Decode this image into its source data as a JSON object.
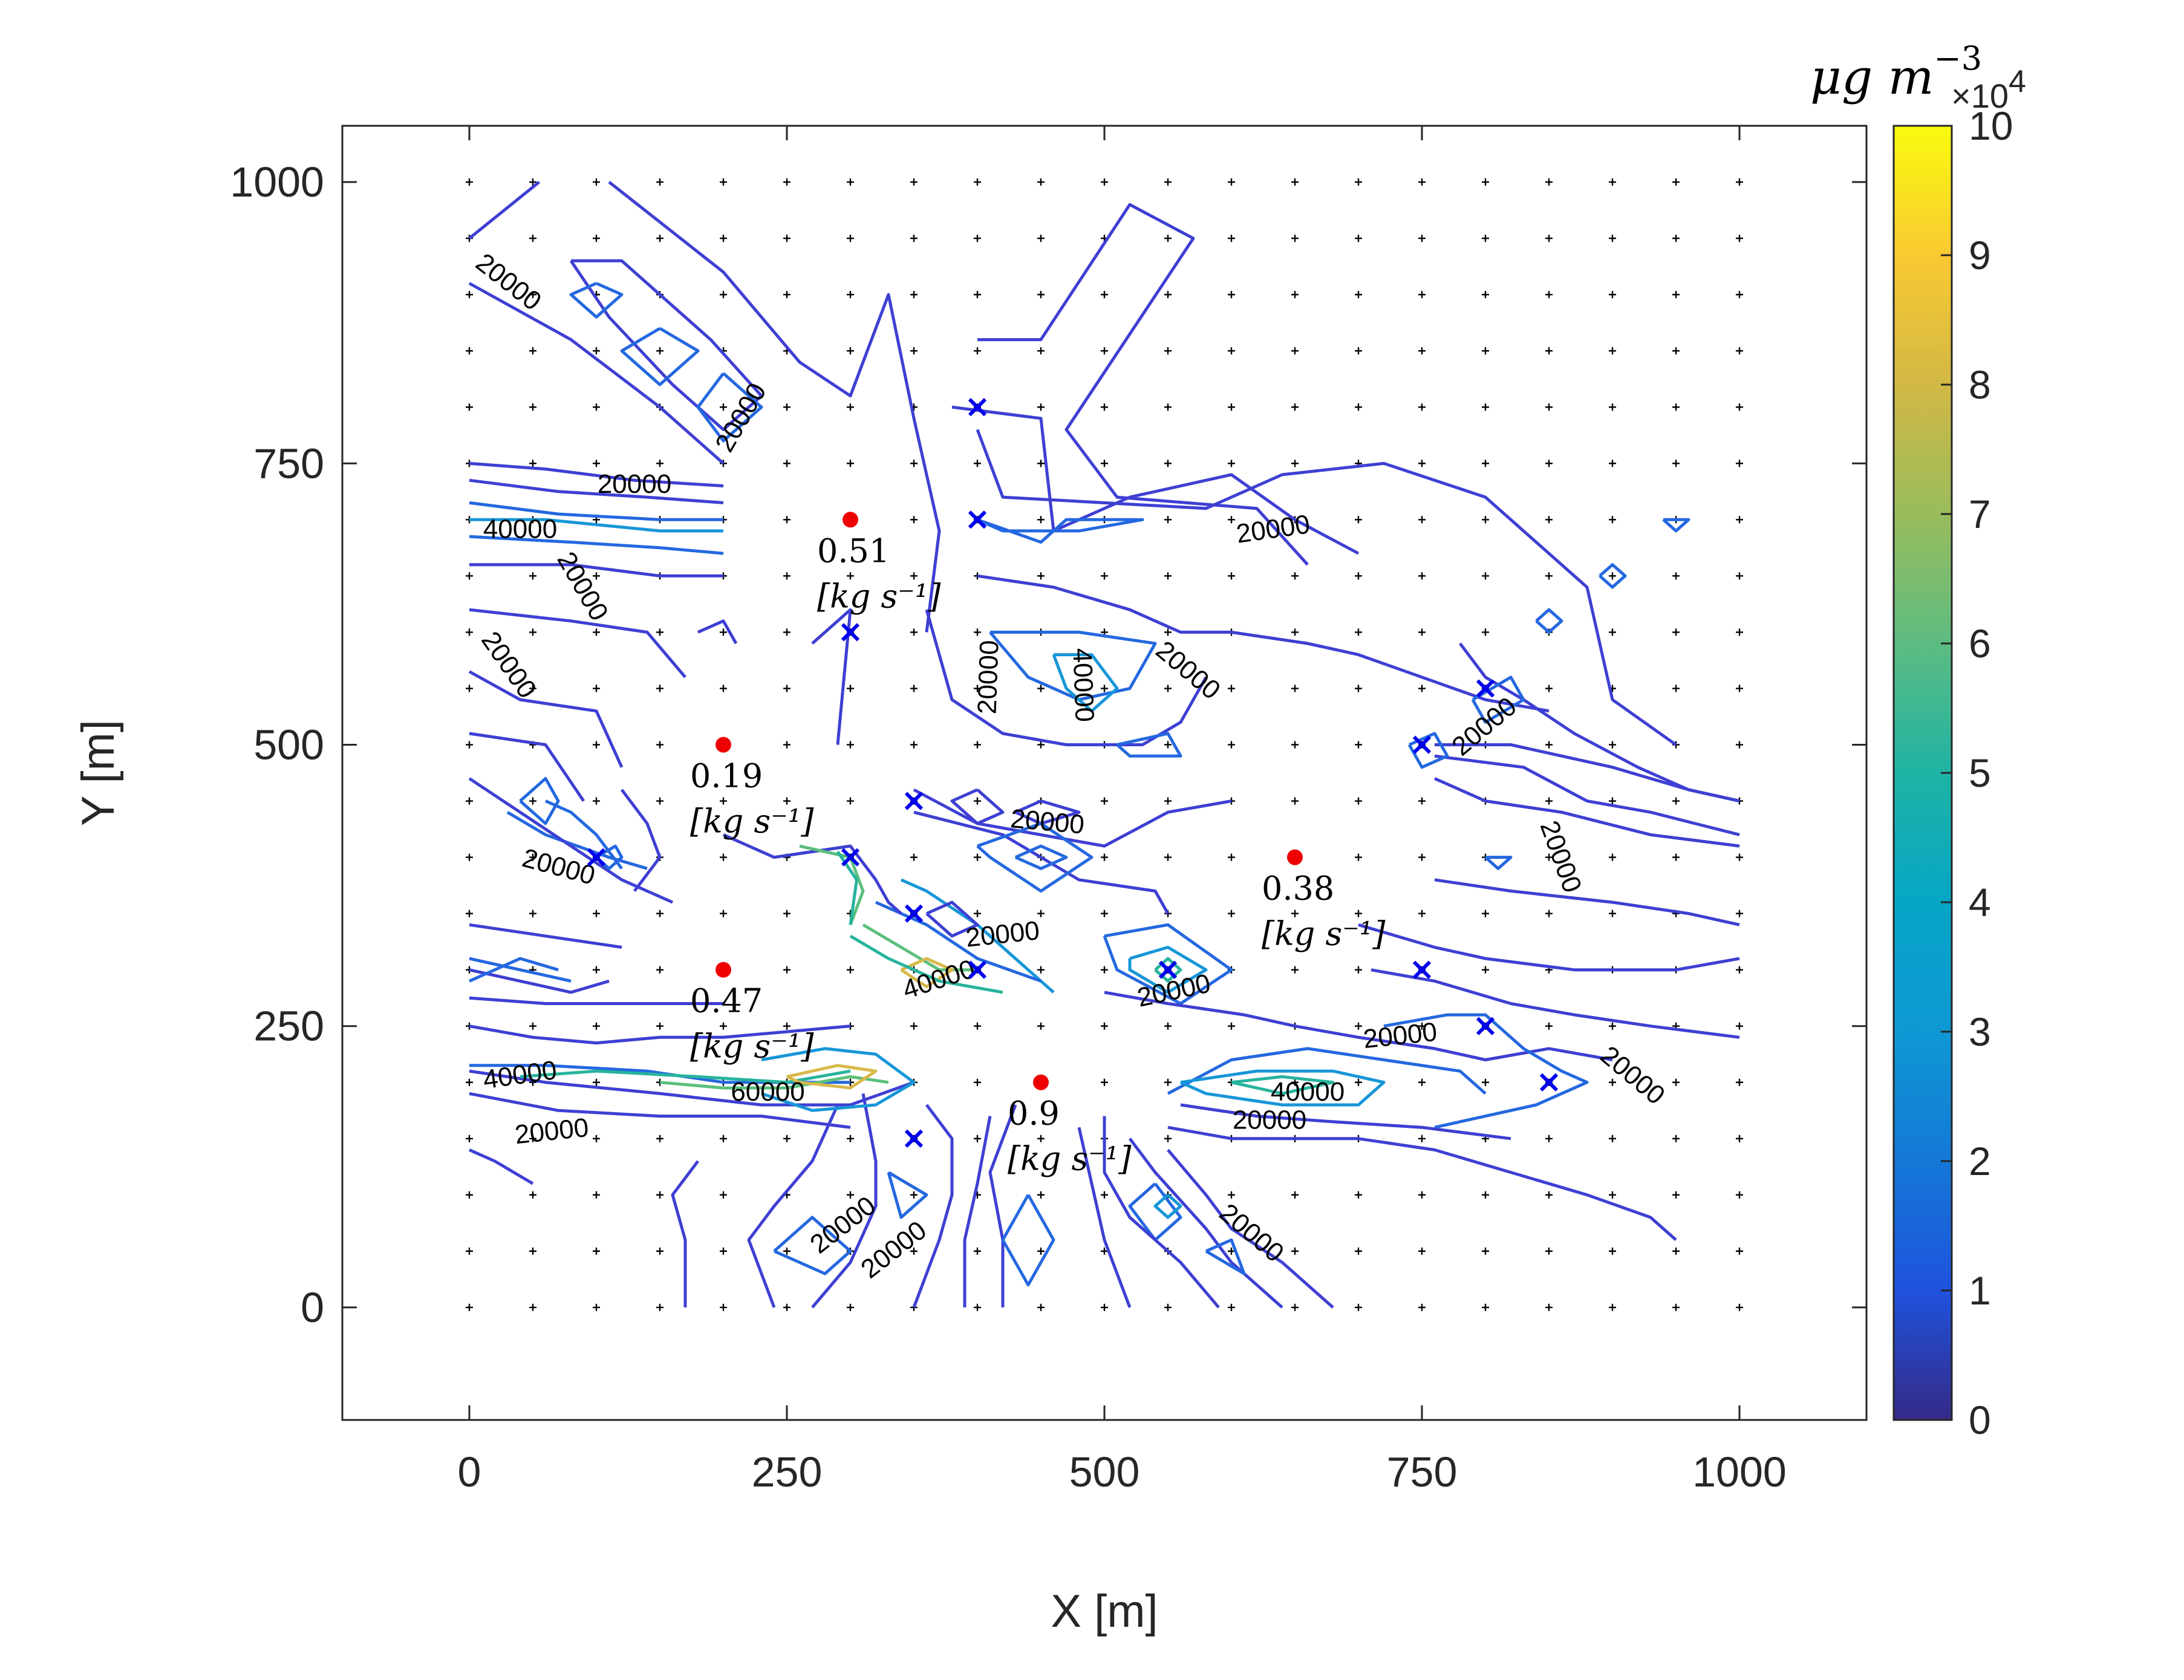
{
  "chart_data": {
    "type": "contour",
    "xlabel": "X [m]",
    "ylabel": "Y [m]",
    "xlim": [
      -100,
      1100
    ],
    "ylim": [
      -100,
      1050
    ],
    "xticks": [
      0,
      250,
      500,
      750,
      1000
    ],
    "yticks": [
      0,
      250,
      500,
      750,
      1000
    ],
    "xtick_labels": [
      "0",
      "250",
      "500",
      "750",
      "1000"
    ],
    "ytick_labels": [
      "0",
      "250",
      "500",
      "750",
      "1000"
    ],
    "grid_step": 50,
    "colorbar": {
      "unit": "μg m",
      "unit_exponent": "−3",
      "multiplier": "×10",
      "multiplier_exponent": "4",
      "range": [
        0,
        10
      ],
      "ticks": [
        0,
        1,
        2,
        3,
        4,
        5,
        6,
        7,
        8,
        9,
        10
      ],
      "tick_labels": [
        "0",
        "1",
        "2",
        "3",
        "4",
        "5",
        "6",
        "7",
        "8",
        "9",
        "10"
      ]
    },
    "sources": [
      {
        "x": 300,
        "y": 700,
        "rate": "0.51",
        "unit": "[kg s⁻¹]"
      },
      {
        "x": 200,
        "y": 500,
        "rate": "0.19",
        "unit": "[kg s⁻¹]"
      },
      {
        "x": 200,
        "y": 300,
        "rate": "0.47",
        "unit": "[kg s⁻¹]"
      },
      {
        "x": 450,
        "y": 200,
        "rate": "0.9",
        "unit": "[kg s⁻¹]"
      },
      {
        "x": 650,
        "y": 400,
        "rate": "0.38",
        "unit": "[kg s⁻¹]"
      }
    ],
    "sensors": [
      {
        "x": 400,
        "y": 800
      },
      {
        "x": 400,
        "y": 700
      },
      {
        "x": 300,
        "y": 600
      },
      {
        "x": 350,
        "y": 450
      },
      {
        "x": 300,
        "y": 400
      },
      {
        "x": 350,
        "y": 350
      },
      {
        "x": 400,
        "y": 300
      },
      {
        "x": 350,
        "y": 150
      },
      {
        "x": 100,
        "y": 400
      },
      {
        "x": 550,
        "y": 300
      },
      {
        "x": 750,
        "y": 500
      },
      {
        "x": 800,
        "y": 550
      },
      {
        "x": 750,
        "y": 300
      },
      {
        "x": 800,
        "y": 250
      },
      {
        "x": 850,
        "y": 200
      }
    ],
    "contour_labels": [
      {
        "text": "20000",
        "x": 30,
        "y": 910,
        "angle": 38
      },
      {
        "text": "20000",
        "x": 215,
        "y": 790,
        "angle": -60
      },
      {
        "text": "20000",
        "x": 130,
        "y": 730,
        "angle": 0
      },
      {
        "text": "40000",
        "x": 40,
        "y": 690,
        "angle": 0
      },
      {
        "text": "20000",
        "x": 88,
        "y": 640,
        "angle": 60
      },
      {
        "text": "20000",
        "x": 30,
        "y": 570,
        "angle": 55
      },
      {
        "text": "20000",
        "x": 410,
        "y": 560,
        "angle": -88
      },
      {
        "text": "40000",
        "x": 482,
        "y": 553,
        "angle": 88
      },
      {
        "text": "20000",
        "x": 565,
        "y": 565,
        "angle": 40
      },
      {
        "text": "20000",
        "x": 633,
        "y": 690,
        "angle": -8
      },
      {
        "text": "20000",
        "x": 455,
        "y": 430,
        "angle": 5
      },
      {
        "text": "20000",
        "x": 70,
        "y": 390,
        "angle": 15
      },
      {
        "text": "20000",
        "x": 420,
        "y": 330,
        "angle": -6
      },
      {
        "text": "40000",
        "x": 370,
        "y": 290,
        "angle": -18
      },
      {
        "text": "20000",
        "x": 555,
        "y": 280,
        "angle": -12
      },
      {
        "text": "20000",
        "x": 800,
        "y": 515,
        "angle": -40
      },
      {
        "text": "20000",
        "x": 858,
        "y": 400,
        "angle": 70
      },
      {
        "text": "20000",
        "x": 733,
        "y": 240,
        "angle": -6
      },
      {
        "text": "20000",
        "x": 915,
        "y": 205,
        "angle": 40
      },
      {
        "text": "40000",
        "x": 660,
        "y": 190,
        "angle": 0
      },
      {
        "text": "20000",
        "x": 630,
        "y": 165,
        "angle": 0
      },
      {
        "text": "40000",
        "x": 40,
        "y": 205,
        "angle": -8
      },
      {
        "text": "60000",
        "x": 235,
        "y": 190,
        "angle": 0
      },
      {
        "text": "20000",
        "x": 65,
        "y": 155,
        "angle": -6
      },
      {
        "text": "20000",
        "x": 295,
        "y": 72,
        "angle": -38
      },
      {
        "text": "20000",
        "x": 335,
        "y": 50,
        "angle": -38
      },
      {
        "text": "20000",
        "x": 615,
        "y": 65,
        "angle": 40
      }
    ]
  }
}
